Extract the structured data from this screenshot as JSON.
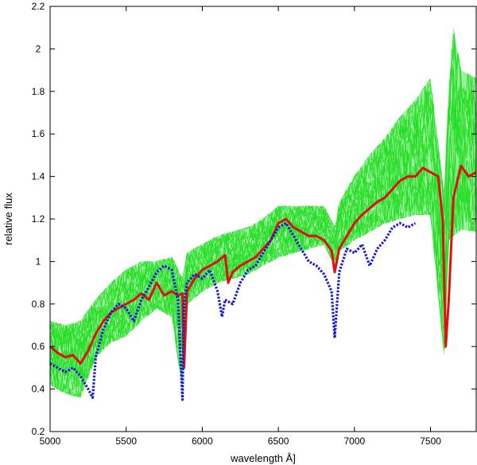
{
  "chart_data": {
    "type": "line",
    "title": "",
    "xlabel": "wavelength  Å]",
    "ylabel": "relative flux",
    "xlim": [
      5000,
      7800
    ],
    "ylim": [
      0.2,
      2.2
    ],
    "xticks": [
      5000,
      5500,
      6000,
      6500,
      7000,
      7500
    ],
    "xtick_labels": [
      "5000",
      "5500",
      "6000",
      "6500",
      "7000",
      "7500"
    ],
    "yticks": [
      0.2,
      0.4,
      0.6,
      0.8,
      1.0,
      1.2,
      1.4,
      1.6,
      1.8,
      2.0,
      2.2
    ],
    "ytick_labels": [
      "0.2",
      "0.4",
      "0.6",
      "0.8",
      "1",
      "1.2",
      "1.4",
      "1.6",
      "1.8",
      "2",
      "2.2"
    ],
    "grid": false,
    "legend": "none",
    "green_band": {
      "color": "#22dd22",
      "x": [
        5000,
        5100,
        5200,
        5300,
        5400,
        5500,
        5600,
        5700,
        5800,
        5870,
        5900,
        6000,
        6100,
        6200,
        6300,
        6400,
        6500,
        6600,
        6700,
        6800,
        6870,
        6900,
        7000,
        7100,
        7200,
        7300,
        7400,
        7500,
        7590,
        7620,
        7650,
        7700,
        7800
      ],
      "low": [
        0.42,
        0.38,
        0.36,
        0.55,
        0.62,
        0.65,
        0.72,
        0.78,
        0.74,
        0.4,
        0.8,
        0.86,
        0.9,
        0.92,
        0.94,
        0.98,
        1.02,
        1.04,
        1.06,
        1.08,
        0.98,
        1.05,
        1.1,
        1.14,
        1.18,
        1.2,
        1.22,
        1.22,
        0.55,
        1.1,
        1.12,
        1.15,
        1.14
      ],
      "high": [
        0.72,
        0.7,
        0.72,
        0.82,
        0.9,
        0.96,
        1.0,
        1.0,
        1.02,
        0.92,
        1.04,
        1.08,
        1.12,
        1.14,
        1.16,
        1.2,
        1.26,
        1.26,
        1.26,
        1.26,
        1.16,
        1.28,
        1.4,
        1.5,
        1.58,
        1.68,
        1.76,
        1.86,
        1.3,
        1.8,
        2.1,
        1.9,
        1.86
      ]
    },
    "series": [
      {
        "color": "#e01010",
        "style": "solid",
        "x": [
          5000,
          5050,
          5100,
          5150,
          5200,
          5250,
          5300,
          5350,
          5400,
          5450,
          5500,
          5550,
          5600,
          5650,
          5700,
          5750,
          5800,
          5840,
          5870,
          5880,
          5900,
          5950,
          6000,
          6050,
          6100,
          6150,
          6170,
          6200,
          6250,
          6300,
          6350,
          6400,
          6450,
          6500,
          6550,
          6600,
          6650,
          6700,
          6750,
          6800,
          6850,
          6870,
          6900,
          6950,
          7000,
          7050,
          7100,
          7150,
          7200,
          7250,
          7300,
          7350,
          7400,
          7450,
          7500,
          7550,
          7580,
          7600,
          7620,
          7650,
          7700,
          7750,
          7800
        ],
        "y": [
          0.6,
          0.57,
          0.55,
          0.56,
          0.52,
          0.58,
          0.66,
          0.72,
          0.76,
          0.78,
          0.8,
          0.82,
          0.85,
          0.82,
          0.9,
          0.84,
          0.86,
          0.84,
          0.85,
          0.5,
          0.86,
          0.92,
          0.96,
          0.98,
          1.0,
          1.03,
          0.9,
          0.95,
          0.98,
          1.0,
          1.02,
          1.06,
          1.1,
          1.18,
          1.2,
          1.16,
          1.14,
          1.12,
          1.12,
          1.1,
          1.05,
          0.95,
          1.06,
          1.12,
          1.18,
          1.22,
          1.25,
          1.28,
          1.3,
          1.34,
          1.38,
          1.4,
          1.4,
          1.44,
          1.42,
          1.4,
          1.2,
          0.6,
          0.82,
          1.3,
          1.45,
          1.4,
          1.42
        ]
      },
      {
        "color": "#1a1ad8",
        "style": "dotted",
        "x": [
          5000,
          5050,
          5100,
          5150,
          5200,
          5250,
          5280,
          5300,
          5350,
          5400,
          5450,
          5500,
          5550,
          5600,
          5650,
          5700,
          5750,
          5800,
          5840,
          5870,
          5880,
          5900,
          5950,
          6000,
          6050,
          6100,
          6130,
          6150,
          6200,
          6250,
          6300,
          6350,
          6400,
          6450,
          6500,
          6550,
          6600,
          6650,
          6700,
          6750,
          6800,
          6850,
          6870,
          6900,
          6950,
          7000,
          7050,
          7100,
          7150,
          7200,
          7250,
          7300,
          7350,
          7400
        ],
        "y": [
          0.52,
          0.5,
          0.48,
          0.5,
          0.46,
          0.4,
          0.36,
          0.55,
          0.68,
          0.76,
          0.8,
          0.78,
          0.72,
          0.82,
          0.88,
          0.95,
          0.98,
          0.96,
          0.82,
          0.35,
          0.8,
          0.9,
          0.94,
          0.92,
          0.96,
          0.86,
          0.74,
          0.82,
          0.8,
          0.9,
          0.96,
          0.98,
          1.04,
          1.1,
          1.16,
          1.18,
          1.12,
          1.06,
          1.0,
          0.98,
          0.94,
          0.86,
          0.64,
          0.95,
          1.06,
          1.04,
          1.08,
          0.98,
          1.06,
          1.1,
          1.16,
          1.18,
          1.16,
          1.18
        ]
      }
    ]
  }
}
